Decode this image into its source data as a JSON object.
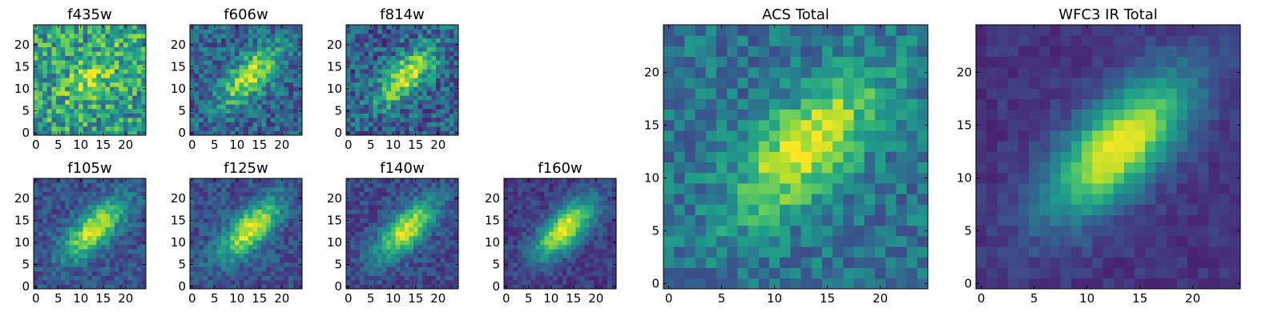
{
  "chart_data": [
    {
      "type": "heatmap",
      "title": "f435w",
      "colormap": "viridis",
      "grid": false,
      "xlim": [
        -0.5,
        24.5
      ],
      "ylim": [
        -0.5,
        24.5
      ],
      "xticks": [
        0,
        5,
        10,
        15,
        20
      ],
      "yticks": [
        0,
        5,
        10,
        15,
        20
      ],
      "xticklabels": [
        "0",
        "5",
        "10",
        "15",
        "20"
      ],
      "yticklabels": [
        "0",
        "5",
        "10",
        "15",
        "20"
      ],
      "noise": 0.28,
      "peak": 0.3,
      "floor": 0.55,
      "seed": 11
    },
    {
      "type": "heatmap",
      "title": "f606w",
      "colormap": "viridis",
      "grid": false,
      "xlim": [
        -0.5,
        24.5
      ],
      "ylim": [
        -0.5,
        24.5
      ],
      "xticks": [
        0,
        5,
        10,
        15,
        20
      ],
      "yticks": [
        0,
        5,
        10,
        15,
        20
      ],
      "xticklabels": [
        "0",
        "5",
        "10",
        "15",
        "20"
      ],
      "yticklabels": [
        "0",
        "5",
        "10",
        "15",
        "20"
      ],
      "noise": 0.2,
      "peak": 0.6,
      "floor": 0.32,
      "seed": 23
    },
    {
      "type": "heatmap",
      "title": "f814w",
      "colormap": "viridis",
      "grid": false,
      "xlim": [
        -0.5,
        24.5
      ],
      "ylim": [
        -0.5,
        24.5
      ],
      "xticks": [
        0,
        5,
        10,
        15,
        20
      ],
      "yticks": [
        0,
        5,
        10,
        15,
        20
      ],
      "xticklabels": [
        "0",
        "5",
        "10",
        "15",
        "20"
      ],
      "yticklabels": [
        "0",
        "5",
        "10",
        "15",
        "20"
      ],
      "noise": 0.22,
      "peak": 0.62,
      "floor": 0.3,
      "seed": 37
    },
    {
      "type": "heatmap",
      "title": "f105w",
      "colormap": "viridis",
      "grid": false,
      "xlim": [
        -0.5,
        24.5
      ],
      "ylim": [
        -0.5,
        24.5
      ],
      "xticks": [
        0,
        5,
        10,
        15,
        20
      ],
      "yticks": [
        0,
        5,
        10,
        15,
        20
      ],
      "xticklabels": [
        "0",
        "5",
        "10",
        "15",
        "20"
      ],
      "yticklabels": [
        "0",
        "5",
        "10",
        "15",
        "20"
      ],
      "noise": 0.13,
      "peak": 0.7,
      "floor": 0.25,
      "seed": 41
    },
    {
      "type": "heatmap",
      "title": "f125w",
      "colormap": "viridis",
      "grid": false,
      "xlim": [
        -0.5,
        24.5
      ],
      "ylim": [
        -0.5,
        24.5
      ],
      "xticks": [
        0,
        5,
        10,
        15,
        20
      ],
      "yticks": [
        0,
        5,
        10,
        15,
        20
      ],
      "xticklabels": [
        "0",
        "5",
        "10",
        "15",
        "20"
      ],
      "yticklabels": [
        "0",
        "5",
        "10",
        "15",
        "20"
      ],
      "noise": 0.13,
      "peak": 0.7,
      "floor": 0.25,
      "seed": 53
    },
    {
      "type": "heatmap",
      "title": "f140w",
      "colormap": "viridis",
      "grid": false,
      "xlim": [
        -0.5,
        24.5
      ],
      "ylim": [
        -0.5,
        24.5
      ],
      "xticks": [
        0,
        5,
        10,
        15,
        20
      ],
      "yticks": [
        0,
        5,
        10,
        15,
        20
      ],
      "xticklabels": [
        "0",
        "5",
        "10",
        "15",
        "20"
      ],
      "yticklabels": [
        "0",
        "5",
        "10",
        "15",
        "20"
      ],
      "noise": 0.12,
      "peak": 0.72,
      "floor": 0.22,
      "seed": 67
    },
    {
      "type": "heatmap",
      "title": "f160w",
      "colormap": "viridis",
      "grid": false,
      "xlim": [
        -0.5,
        24.5
      ],
      "ylim": [
        -0.5,
        24.5
      ],
      "xticks": [
        0,
        5,
        10,
        15,
        20
      ],
      "yticks": [
        0,
        5,
        10,
        15,
        20
      ],
      "xticklabels": [
        "0",
        "5",
        "10",
        "15",
        "20"
      ],
      "yticklabels": [
        "0",
        "5",
        "10",
        "15",
        "20"
      ],
      "noise": 0.1,
      "peak": 0.8,
      "floor": 0.18,
      "seed": 79
    },
    {
      "type": "heatmap",
      "title": "ACS Total",
      "colormap": "viridis",
      "grid": false,
      "xlim": [
        -0.5,
        24.5
      ],
      "ylim": [
        -0.5,
        24.5
      ],
      "xticks": [
        0,
        5,
        10,
        15,
        20
      ],
      "yticks": [
        0,
        5,
        10,
        15,
        20
      ],
      "xticklabels": [
        "0",
        "5",
        "10",
        "15",
        "20"
      ],
      "yticklabels": [
        "0",
        "5",
        "10",
        "15",
        "20"
      ],
      "noise": 0.16,
      "peak": 0.6,
      "floor": 0.38,
      "seed": 97
    },
    {
      "type": "heatmap",
      "title": "WFC3 IR Total",
      "colormap": "viridis",
      "grid": false,
      "xlim": [
        -0.5,
        24.5
      ],
      "ylim": [
        -0.5,
        24.5
      ],
      "xticks": [
        0,
        5,
        10,
        15,
        20
      ],
      "yticks": [
        0,
        5,
        10,
        15,
        20
      ],
      "xticklabels": [
        "0",
        "5",
        "10",
        "15",
        "20"
      ],
      "yticklabels": [
        "0",
        "5",
        "10",
        "15",
        "20"
      ],
      "noise": 0.06,
      "peak": 0.85,
      "floor": 0.15,
      "seed": 113
    }
  ]
}
